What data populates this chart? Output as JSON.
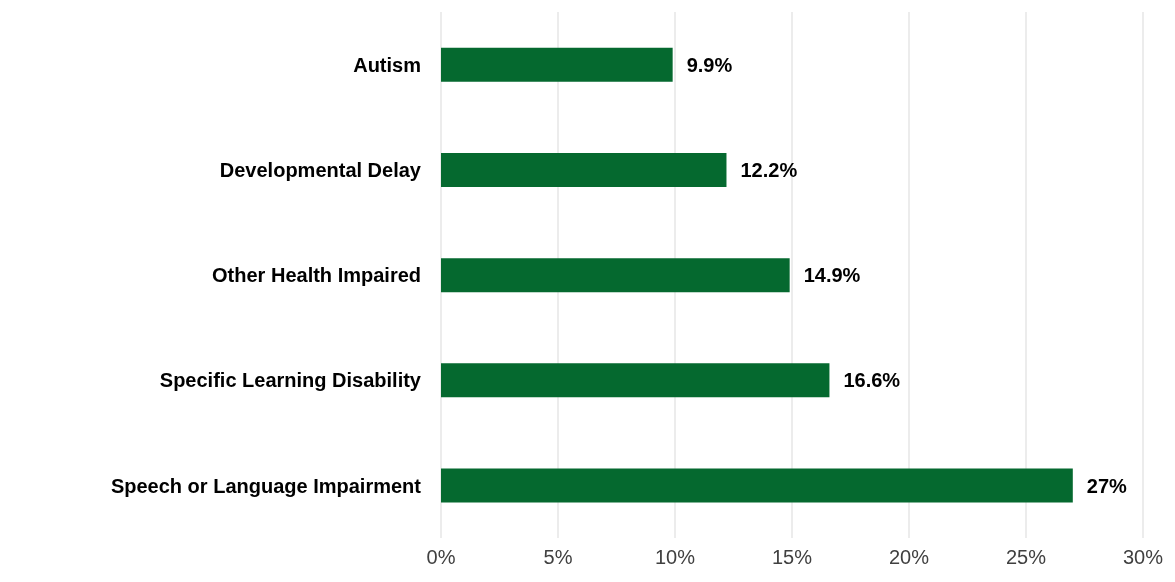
{
  "chart_data": {
    "type": "bar",
    "orientation": "horizontal",
    "categories": [
      "Autism",
      "Developmental Delay",
      "Other Health Impaired",
      "Specific Learning Disability",
      "Speech or Language Impairment"
    ],
    "values": [
      9.9,
      12.2,
      14.9,
      16.6,
      27
    ],
    "value_labels": [
      "9.9%",
      "12.2%",
      "14.9%",
      "16.6%",
      "27%"
    ],
    "color": "#05692f",
    "xlim": [
      0,
      30
    ],
    "xticks": [
      {
        "value": 0,
        "label": "0%"
      },
      {
        "value": 5,
        "label": "5%"
      },
      {
        "value": 10,
        "label": "10%"
      },
      {
        "value": 15,
        "label": "15%"
      },
      {
        "value": 20,
        "label": "20%"
      },
      {
        "value": 25,
        "label": "25%"
      },
      {
        "value": 30,
        "label": "30%"
      }
    ],
    "grid": "x",
    "legend": false
  }
}
